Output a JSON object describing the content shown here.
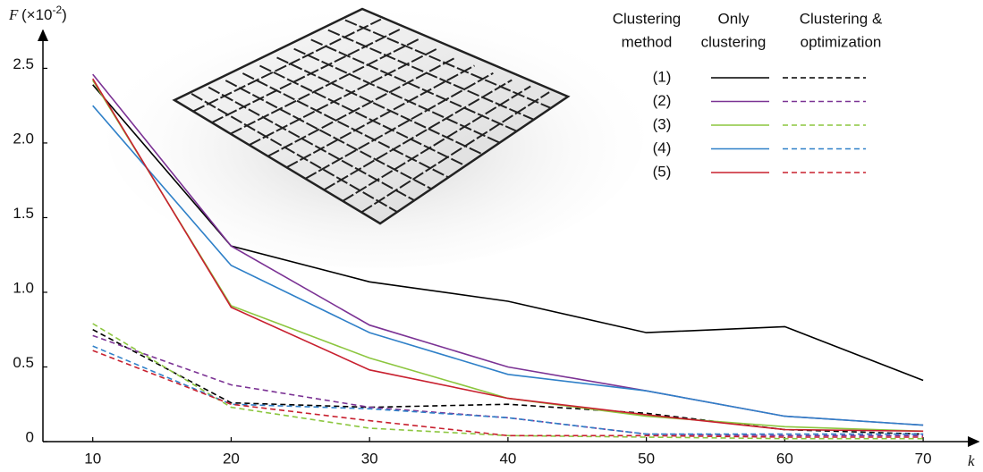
{
  "chart_data": {
    "type": "line",
    "y_label": "F",
    "y_scale_label": {
      "base": "(×10",
      "exponent": "-2",
      "close": ")"
    },
    "x_label": "k",
    "x": [
      10,
      20,
      30,
      40,
      50,
      60,
      70
    ],
    "xlim": [
      6.4,
      74
    ],
    "xticks": [
      10,
      20,
      30,
      40,
      50,
      60,
      70
    ],
    "ylim": [
      0,
      2.73
    ],
    "yticks": [
      {
        "value": 0,
        "label": "0"
      },
      {
        "value": 0.5,
        "label": "0.5"
      },
      {
        "value": 1,
        "label": "1.0"
      },
      {
        "value": 1.5,
        "label": "1.5"
      },
      {
        "value": 2,
        "label": "2.0"
      },
      {
        "value": 2.5,
        "label": "2.5"
      }
    ],
    "grid": false,
    "legend_columns": [
      [
        "Clustering",
        "method"
      ],
      [
        "Only",
        "clustering"
      ],
      [
        "Clustering &",
        "optimization"
      ]
    ],
    "series": [
      {
        "name": "(1)",
        "color": "#000000",
        "values": [
          2.39,
          1.31,
          1.07,
          0.94,
          0.73,
          0.77,
          0.41
        ],
        "optimized_values": [
          0.75,
          0.26,
          0.23,
          0.25,
          0.19,
          0.08,
          0.05
        ]
      },
      {
        "name": "(2)",
        "color": "#7b3294",
        "values": [
          2.46,
          1.31,
          0.78,
          0.5,
          0.34,
          0.17,
          0.11
        ],
        "optimized_values": [
          0.71,
          0.38,
          0.23,
          0.16,
          0.05,
          0.04,
          0.04
        ]
      },
      {
        "name": "(3)",
        "color": "#8cc63f",
        "values": [
          2.42,
          0.91,
          0.56,
          0.29,
          0.17,
          0.1,
          0.07
        ],
        "optimized_values": [
          0.79,
          0.23,
          0.09,
          0.04,
          0.03,
          0.02,
          0.02
        ]
      },
      {
        "name": "(4)",
        "color": "#2f80c8",
        "values": [
          2.25,
          1.18,
          0.73,
          0.45,
          0.34,
          0.17,
          0.11
        ],
        "optimized_values": [
          0.64,
          0.25,
          0.22,
          0.16,
          0.05,
          0.05,
          0.05
        ]
      },
      {
        "name": "(5)",
        "color": "#c8202f",
        "values": [
          2.43,
          0.9,
          0.48,
          0.29,
          0.18,
          0.08,
          0.07
        ],
        "optimized_values": [
          0.61,
          0.25,
          0.14,
          0.04,
          0.04,
          0.03,
          0.03
        ]
      }
    ]
  }
}
